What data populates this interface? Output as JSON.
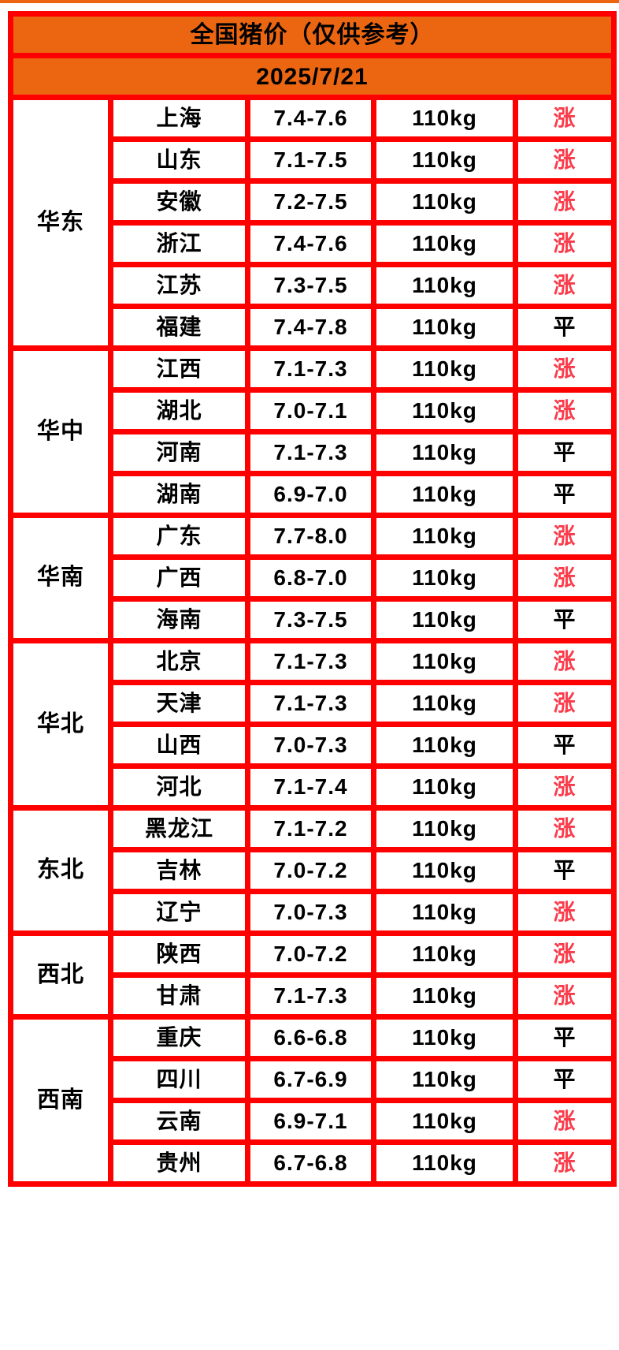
{
  "header": {
    "title": "全国猪价（仅供参考）",
    "date": "2025/7/21"
  },
  "colors": {
    "header_bg": "#EC6612",
    "border": "#FE0000",
    "cell_bg": "#FFFFFF",
    "text": "#000000"
  },
  "status_colors": {
    "涨": "#FB3B4A",
    "平": "#000000"
  },
  "legend": {
    "up": "涨",
    "flat": "平"
  },
  "weight_unit": "110kg",
  "regions": [
    {
      "name": "华东",
      "rows": [
        {
          "province": "上海",
          "price": "7.4-7.6",
          "weight": "110kg",
          "status": "涨"
        },
        {
          "province": "山东",
          "price": "7.1-7.5",
          "weight": "110kg",
          "status": "涨"
        },
        {
          "province": "安徽",
          "price": "7.2-7.5",
          "weight": "110kg",
          "status": "涨"
        },
        {
          "province": "浙江",
          "price": "7.4-7.6",
          "weight": "110kg",
          "status": "涨"
        },
        {
          "province": "江苏",
          "price": "7.3-7.5",
          "weight": "110kg",
          "status": "涨"
        },
        {
          "province": "福建",
          "price": "7.4-7.8",
          "weight": "110kg",
          "status": "平"
        }
      ]
    },
    {
      "name": "华中",
      "rows": [
        {
          "province": "江西",
          "price": "7.1-7.3",
          "weight": "110kg",
          "status": "涨"
        },
        {
          "province": "湖北",
          "price": "7.0-7.1",
          "weight": "110kg",
          "status": "涨"
        },
        {
          "province": "河南",
          "price": "7.1-7.3",
          "weight": "110kg",
          "status": "平"
        },
        {
          "province": "湖南",
          "price": "6.9-7.0",
          "weight": "110kg",
          "status": "平"
        }
      ]
    },
    {
      "name": "华南",
      "rows": [
        {
          "province": "广东",
          "price": "7.7-8.0",
          "weight": "110kg",
          "status": "涨"
        },
        {
          "province": "广西",
          "price": "6.8-7.0",
          "weight": "110kg",
          "status": "涨"
        },
        {
          "province": "海南",
          "price": "7.3-7.5",
          "weight": "110kg",
          "status": "平"
        }
      ]
    },
    {
      "name": "华北",
      "rows": [
        {
          "province": "北京",
          "price": "7.1-7.3",
          "weight": "110kg",
          "status": "涨"
        },
        {
          "province": "天津",
          "price": "7.1-7.3",
          "weight": "110kg",
          "status": "涨"
        },
        {
          "province": "山西",
          "price": "7.0-7.3",
          "weight": "110kg",
          "status": "平"
        },
        {
          "province": "河北",
          "price": "7.1-7.4",
          "weight": "110kg",
          "status": "涨"
        }
      ]
    },
    {
      "name": "东北",
      "rows": [
        {
          "province": "黑龙江",
          "price": "7.1-7.2",
          "weight": "110kg",
          "status": "涨"
        },
        {
          "province": "吉林",
          "price": "7.0-7.2",
          "weight": "110kg",
          "status": "平"
        },
        {
          "province": "辽宁",
          "price": "7.0-7.3",
          "weight": "110kg",
          "status": "涨"
        }
      ]
    },
    {
      "name": "西北",
      "rows": [
        {
          "province": "陕西",
          "price": "7.0-7.2",
          "weight": "110kg",
          "status": "涨"
        },
        {
          "province": "甘肃",
          "price": "7.1-7.3",
          "weight": "110kg",
          "status": "涨"
        }
      ]
    },
    {
      "name": "西南",
      "rows": [
        {
          "province": "重庆",
          "price": "6.6-6.8",
          "weight": "110kg",
          "status": "平"
        },
        {
          "province": "四川",
          "price": "6.7-6.9",
          "weight": "110kg",
          "status": "平"
        },
        {
          "province": "云南",
          "price": "6.9-7.1",
          "weight": "110kg",
          "status": "涨"
        },
        {
          "province": "贵州",
          "price": "6.7-6.8",
          "weight": "110kg",
          "status": "涨"
        }
      ]
    }
  ]
}
